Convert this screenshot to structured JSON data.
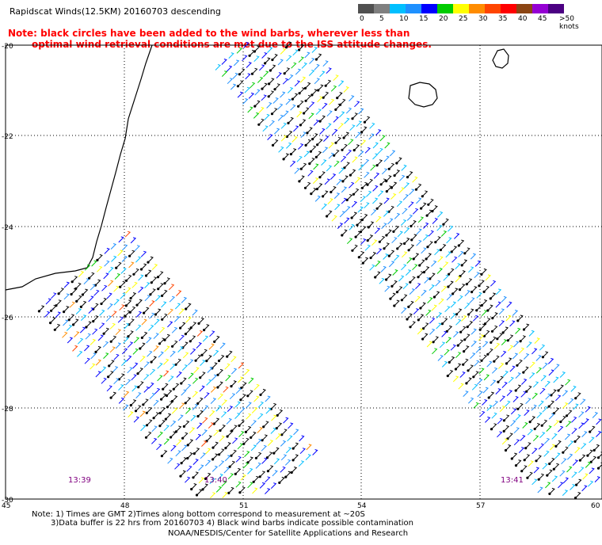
{
  "title": "Rapidscat Winds(12.5KM) 20160703 descending",
  "note": {
    "line1": "Note: black circles have been added to the wind barbs, wherever less than",
    "line2": "optimal wind retrieval conditions are met due to the ISS attitude changes."
  },
  "colorbar": {
    "unit_label": ">50 knots",
    "ticks": [
      "0",
      "5",
      "10",
      "15",
      "20",
      "25",
      "30",
      "35",
      "40",
      "45"
    ],
    "colors": [
      "#505050",
      "#7f7f7f",
      "#00bfff",
      "#1e90ff",
      "#0000ff",
      "#00cc00",
      "#ffff00",
      "#ff8c00",
      "#ff4500",
      "#ff0000",
      "#8b4513",
      "#9400d3",
      "#4b0082"
    ]
  },
  "map": {
    "lat_labels": [
      "-20",
      "-22",
      "-24",
      "-26",
      "-28",
      "-30"
    ],
    "lon_labels": [
      "45",
      "48",
      "51",
      "54",
      "57",
      "60"
    ],
    "grid": "dotted",
    "pass_times": [
      "13:39",
      "13:40",
      "13:41"
    ]
  },
  "footnote": {
    "line1": "Note: 1) Times are GMT 2)Times along bottom correspond to measurement at ~20S",
    "line2": "3)Data buffer is 22 hrs from 20160703 4) Black wind barbs indicate possible contamination"
  },
  "credit": "NOAA/NESDIS/Center for Satellite Applications and Research",
  "colors": {
    "note_text": "#ff0000",
    "time_label": "#800080",
    "coastline": "#000000"
  }
}
